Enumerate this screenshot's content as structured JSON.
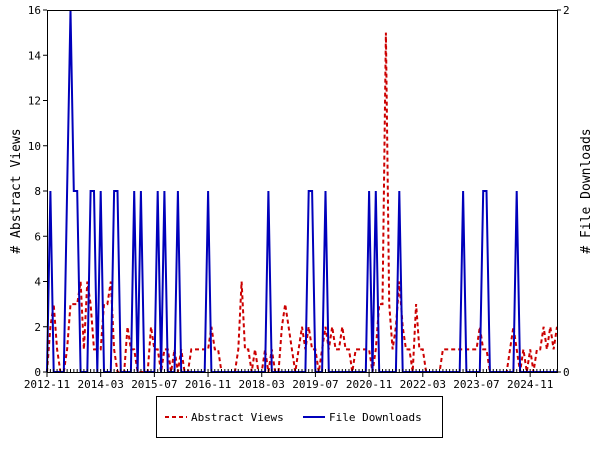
{
  "chart_data": {
    "type": "line",
    "ylabel": "# Abstract Views",
    "y2label": "# File Downloads",
    "ylim": [
      0,
      16
    ],
    "y2lim": [
      0,
      2
    ],
    "yticks": [
      "0",
      "2",
      "4",
      "6",
      "8",
      "10",
      "12",
      "14",
      "16"
    ],
    "y2ticks": [
      "0",
      "2"
    ],
    "xticks": [
      "2012-11",
      "2014-03",
      "2015-07",
      "2016-11",
      "2018-03",
      "2019-07",
      "2020-11",
      "2022-03",
      "2023-07",
      "2024-11"
    ],
    "grid": false,
    "legend": "bottom",
    "x": [
      "2012-11",
      "2012-12",
      "2013-01",
      "2013-02",
      "2013-03",
      "2013-04",
      "2013-05",
      "2013-06",
      "2013-07",
      "2013-08",
      "2013-09",
      "2013-10",
      "2013-11",
      "2013-12",
      "2014-01",
      "2014-02",
      "2014-03",
      "2014-04",
      "2014-05",
      "2014-06",
      "2014-07",
      "2014-08",
      "2014-09",
      "2014-10",
      "2014-11",
      "2014-12",
      "2015-01",
      "2015-02",
      "2015-03",
      "2015-04",
      "2015-05",
      "2015-06",
      "2015-07",
      "2015-08",
      "2015-09",
      "2015-10",
      "2015-11",
      "2015-12",
      "2016-01",
      "2016-02",
      "2016-03",
      "2016-04",
      "2016-05",
      "2016-06",
      "2016-07",
      "2016-08",
      "2016-09",
      "2016-10",
      "2016-11",
      "2016-12",
      "2017-01",
      "2017-02",
      "2017-03",
      "2017-04",
      "2017-05",
      "2017-06",
      "2017-07",
      "2017-08",
      "2017-09",
      "2017-10",
      "2017-11",
      "2017-12",
      "2018-01",
      "2018-02",
      "2018-03",
      "2018-04",
      "2018-05",
      "2018-06",
      "2018-07",
      "2018-08",
      "2018-09",
      "2018-10",
      "2018-11",
      "2018-12",
      "2019-01",
      "2019-02",
      "2019-03",
      "2019-04",
      "2019-05",
      "2019-06",
      "2019-07",
      "2019-08",
      "2019-09",
      "2019-10",
      "2019-11",
      "2019-12",
      "2020-01",
      "2020-02",
      "2020-03",
      "2020-04",
      "2020-05",
      "2020-06",
      "2020-07",
      "2020-08",
      "2020-09",
      "2020-10",
      "2020-11",
      "2020-12",
      "2021-01",
      "2021-02",
      "2021-03",
      "2021-04",
      "2021-05",
      "2021-06",
      "2021-07",
      "2021-08",
      "2021-09",
      "2021-10",
      "2021-11",
      "2021-12",
      "2022-01",
      "2022-02",
      "2022-03",
      "2022-04",
      "2022-05",
      "2022-06",
      "2022-07",
      "2022-08",
      "2022-09",
      "2022-10",
      "2022-11",
      "2022-12",
      "2023-01",
      "2023-02",
      "2023-03",
      "2023-04",
      "2023-05",
      "2023-06",
      "2023-07",
      "2023-08",
      "2023-09",
      "2023-10",
      "2023-11",
      "2023-12",
      "2024-01",
      "2024-02",
      "2024-03",
      "2024-04",
      "2024-05",
      "2024-06",
      "2024-07",
      "2024-08",
      "2024-09",
      "2024-10",
      "2024-11",
      "2024-12",
      "2025-01",
      "2025-02",
      "2025-03",
      "2025-04",
      "2025-05",
      "2025-06",
      "2025-07"
    ],
    "series": [
      {
        "name": "Abstract Views",
        "axis": "left",
        "color": "#cc0000",
        "dash": true,
        "values": [
          0,
          2,
          3,
          1,
          0,
          0,
          1,
          3,
          3,
          3,
          4,
          1,
          4,
          3,
          1,
          1,
          1,
          3,
          3,
          4,
          1,
          0,
          0,
          0,
          2,
          1,
          1,
          0,
          0,
          0,
          0,
          2,
          1,
          1,
          0,
          1,
          1,
          0,
          1,
          0,
          1,
          0,
          0,
          1,
          1,
          1,
          1,
          1,
          1,
          2,
          1,
          1,
          0,
          0,
          0,
          0,
          0,
          1,
          4,
          1,
          1,
          0,
          1,
          0,
          0,
          1,
          0,
          1,
          0,
          0,
          2,
          3,
          2,
          1,
          0,
          1,
          2,
          1,
          2,
          1,
          1,
          0,
          1,
          2,
          1,
          2,
          1,
          1,
          2,
          1,
          1,
          0,
          1,
          1,
          1,
          1,
          1,
          0,
          1,
          3,
          3,
          15,
          3,
          1,
          2,
          4,
          2,
          1,
          1,
          0,
          3,
          1,
          1,
          0,
          0,
          0,
          0,
          0,
          1,
          1,
          1,
          1,
          1,
          1,
          1,
          1,
          1,
          1,
          1,
          2,
          1,
          1,
          0,
          0,
          0,
          0,
          0,
          0,
          1,
          2,
          1,
          0,
          1,
          0,
          1,
          0,
          1,
          1,
          2,
          1,
          2,
          1,
          2
        ]
      },
      {
        "name": "File Downloads",
        "axis": "right",
        "color": "#0000bb",
        "dash": false,
        "values": [
          0,
          1,
          0,
          0,
          0,
          0,
          1,
          2,
          1,
          1,
          0,
          0,
          0,
          1,
          1,
          0,
          1,
          0,
          0,
          0,
          1,
          1,
          0,
          0,
          0,
          0,
          1,
          0,
          1,
          0,
          0,
          0,
          0,
          1,
          0,
          1,
          0,
          0,
          0,
          1,
          0,
          0,
          0,
          0,
          0,
          0,
          0,
          0,
          1,
          0,
          0,
          0,
          0,
          0,
          0,
          0,
          0,
          0,
          0,
          0,
          0,
          0,
          0,
          0,
          0,
          0,
          1,
          0,
          0,
          0,
          0,
          0,
          0,
          0,
          0,
          0,
          0,
          0,
          1,
          1,
          0,
          0,
          0,
          1,
          0,
          0,
          0,
          0,
          0,
          0,
          0,
          0,
          0,
          0,
          0,
          0,
          1,
          0,
          1,
          0,
          0,
          0,
          0,
          0,
          0,
          1,
          0,
          0,
          0,
          0,
          0,
          0,
          0,
          0,
          0,
          0,
          0,
          0,
          0,
          0,
          0,
          0,
          0,
          0,
          1,
          0,
          0,
          0,
          0,
          0,
          1,
          1,
          0,
          0,
          0,
          0,
          0,
          0,
          0,
          0,
          1,
          0,
          0,
          0,
          0,
          0,
          0,
          0,
          0,
          0,
          0,
          0,
          0
        ]
      }
    ]
  }
}
